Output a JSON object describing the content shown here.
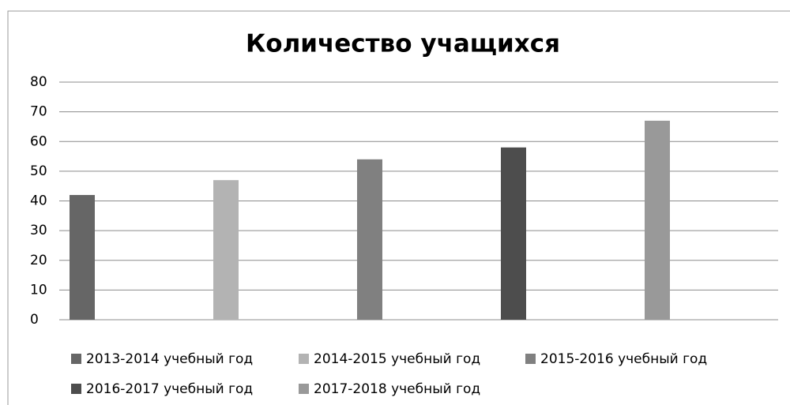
{
  "chart_data": {
    "type": "bar",
    "title": "Количество учащихся",
    "categories": [
      null
    ],
    "series": [
      {
        "name": "2013-2014 учебный год",
        "color": "#666666",
        "values": [
          42
        ]
      },
      {
        "name": "2014-2015 учебный год",
        "color": "#b3b3b3",
        "values": [
          47
        ]
      },
      {
        "name": "2015-2016 учебный год",
        "color": "#808080",
        "values": [
          54
        ]
      },
      {
        "name": "2016-2017 учебный год",
        "color": "#4d4d4d",
        "values": [
          58
        ]
      },
      {
        "name": "2017-2018 учебный год",
        "color": "#999999",
        "values": [
          67
        ]
      }
    ],
    "ylim": [
      0,
      80
    ],
    "yticks": [
      0,
      10,
      20,
      30,
      40,
      50,
      60,
      70,
      80
    ],
    "grid": true,
    "legend": "bottom"
  }
}
